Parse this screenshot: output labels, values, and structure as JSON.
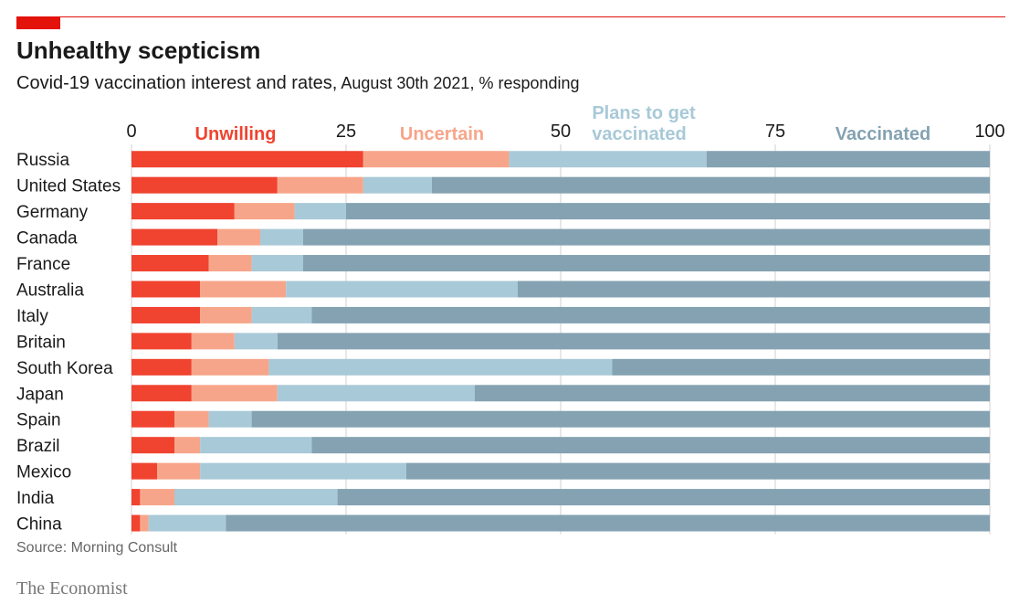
{
  "header": {
    "title": "Unhealthy scepticism",
    "subtitle_main": "Covid-19 vaccination interest and rates,",
    "subtitle_date": " August 30th 2021, % responding"
  },
  "footer": {
    "source": "Source: Morning Consult",
    "brand": "The Economist"
  },
  "colors": {
    "accent": "#e3120b",
    "unwilling": "#f04330",
    "uncertain": "#f7a58a",
    "plans": "#a8c9d8",
    "vaccinated": "#84a2b2"
  },
  "chart_data": {
    "type": "bar",
    "orientation": "horizontal",
    "stacked": true,
    "title": "Unhealthy scepticism",
    "subtitle": "Covid-19 vaccination interest and rates, August 30th 2021, % responding",
    "xlim": [
      0,
      100
    ],
    "xticks": [
      0,
      25,
      50,
      75,
      100
    ],
    "categories": [
      "Russia",
      "United States",
      "Germany",
      "Canada",
      "France",
      "Australia",
      "Italy",
      "Britain",
      "South Korea",
      "Japan",
      "Spain",
      "Brazil",
      "Mexico",
      "India",
      "China"
    ],
    "series": [
      {
        "name": "Unwilling",
        "key": "unwilling",
        "values": [
          27,
          17,
          12,
          10,
          9,
          8,
          8,
          7,
          7,
          7,
          5,
          5,
          3,
          1,
          1
        ]
      },
      {
        "name": "Uncertain",
        "key": "uncertain",
        "values": [
          17,
          10,
          7,
          5,
          5,
          10,
          6,
          5,
          9,
          10,
          4,
          3,
          5,
          4,
          1
        ]
      },
      {
        "name": "Plans to get vaccinated",
        "key": "plans",
        "values": [
          23,
          8,
          6,
          5,
          6,
          27,
          7,
          5,
          40,
          23,
          5,
          13,
          24,
          19,
          9
        ]
      },
      {
        "name": "Vaccinated",
        "key": "vaccinated",
        "values": [
          33,
          65,
          75,
          80,
          80,
          55,
          79,
          83,
          44,
          60,
          86,
          79,
          68,
          76,
          89
        ]
      }
    ],
    "legend": {
      "unwilling": "Unwilling",
      "uncertain": "Uncertain",
      "plans_line1": "Plans to get",
      "plans_line2": "vaccinated",
      "vaccinated": "Vaccinated"
    },
    "source": "Source: Morning Consult"
  }
}
